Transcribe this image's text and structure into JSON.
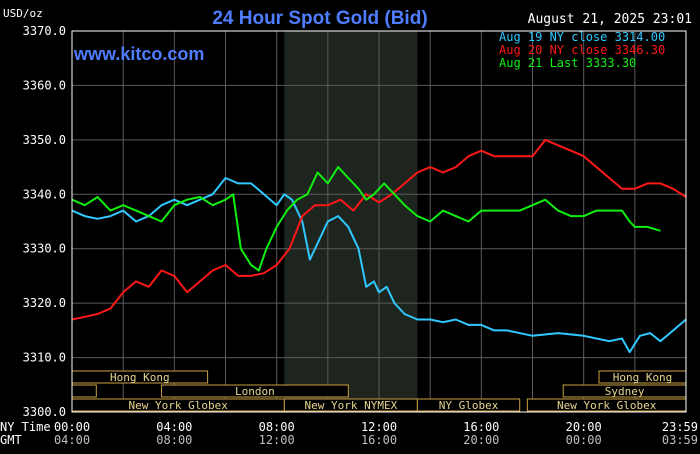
{
  "chart_data": {
    "type": "line",
    "title": "24 Hour Spot Gold (Bid)",
    "watermark": "www.kitco.com",
    "timestamp": "August 21, 2025 23:01",
    "yunit": "USD/oz",
    "ylim": [
      3300,
      3370
    ],
    "yticks": [
      "3370.0",
      "3360.0",
      "3350.0",
      "3340.0",
      "3330.0",
      "3320.0",
      "3310.0",
      "3300.0"
    ],
    "xlim": [
      0,
      24
    ],
    "grid": true,
    "legend_position": "top-right",
    "xaxis": {
      "row1_label": "NY Time",
      "row2_label": "GMT",
      "ny_ticks": [
        "00:00",
        "04:00",
        "08:00",
        "12:00",
        "16:00",
        "20:00",
        "23:59"
      ],
      "gmt_ticks": [
        "04:00",
        "08:00",
        "12:00",
        "16:00",
        "20:00",
        "00:00",
        "03:59"
      ],
      "tick_hours": [
        0,
        4,
        8,
        12,
        16,
        20,
        23.98
      ]
    },
    "shaded_hours": [
      8.3,
      13.5
    ],
    "sessions": [
      {
        "label": "Hong Kong",
        "row": 0,
        "start": 0,
        "end": 5.3
      },
      {
        "label": "Hong Kong",
        "row": 0,
        "start": 20.6,
        "end": 24
      },
      {
        "label": "London",
        "row": 1,
        "start": 0,
        "end": 0.95
      },
      {
        "label": "London",
        "row": 1,
        "start": 3.5,
        "end": 10.8
      },
      {
        "label": "Sydney",
        "row": 1,
        "start": 19.2,
        "end": 24
      },
      {
        "label": "New York Globex",
        "row": 2,
        "start": 0,
        "end": 8.3
      },
      {
        "label": "New York NYMEX",
        "row": 2,
        "start": 8.3,
        "end": 13.5
      },
      {
        "label": "NY Globex",
        "row": 2,
        "start": 13.5,
        "end": 17.5
      },
      {
        "label": "New York Globex",
        "row": 2,
        "start": 17.8,
        "end": 24
      }
    ],
    "series": [
      {
        "name": "Aug 19 NY close 3314.00",
        "color": "#30c8ff",
        "x": [
          0,
          0.5,
          1.0,
          1.5,
          2.0,
          2.5,
          3.0,
          3.5,
          4.0,
          4.5,
          5.0,
          5.5,
          6.0,
          6.5,
          7.0,
          7.5,
          8.0,
          8.3,
          8.6,
          9.0,
          9.3,
          9.6,
          10.0,
          10.4,
          10.8,
          11.2,
          11.5,
          11.8,
          12.0,
          12.3,
          12.6,
          13.0,
          13.5,
          14.0,
          14.5,
          15.0,
          15.5,
          16.0,
          16.5,
          17.0,
          18.0,
          19.0,
          20.0,
          20.5,
          21.0,
          21.5,
          21.8,
          22.2,
          22.6,
          23.0,
          23.5,
          24.0
        ],
        "values": [
          3337,
          3336,
          3335.5,
          3336,
          3337,
          3335,
          3336,
          3338,
          3339,
          3338,
          3339,
          3340,
          3343,
          3342,
          3342,
          3340,
          3338,
          3340,
          3339,
          3335,
          3328,
          3331,
          3335,
          3336,
          3334,
          3330,
          3323,
          3324,
          3322,
          3323,
          3320,
          3318,
          3317,
          3317,
          3316.5,
          3317,
          3316,
          3316,
          3315,
          3315,
          3314,
          3314.5,
          3314,
          3313.5,
          3313,
          3313.5,
          3311,
          3314,
          3314.5,
          3313,
          3315,
          3317
        ]
      },
      {
        "name": "Aug 20 NY close 3346.30",
        "color": "#ff1818",
        "x": [
          0,
          0.5,
          1.0,
          1.5,
          2.0,
          2.5,
          3.0,
          3.5,
          4.0,
          4.5,
          5.0,
          5.5,
          6.0,
          6.5,
          7.0,
          7.5,
          8.0,
          8.5,
          9.0,
          9.5,
          10.0,
          10.5,
          11.0,
          11.5,
          12.0,
          12.5,
          13.0,
          13.5,
          14.0,
          14.5,
          15.0,
          15.5,
          16.0,
          16.5,
          17.0,
          17.5,
          18.0,
          18.5,
          19.0,
          19.5,
          20.0,
          20.5,
          21.0,
          21.5,
          22.0,
          22.5,
          23.0,
          23.5,
          24.0
        ],
        "values": [
          3317,
          3317.5,
          3318,
          3319,
          3322,
          3324,
          3323,
          3326,
          3325,
          3322,
          3324,
          3326,
          3327,
          3325,
          3325,
          3325.5,
          3327,
          3330,
          3336,
          3338,
          3338,
          3339,
          3337,
          3340,
          3338.5,
          3340,
          3342,
          3344,
          3345,
          3344,
          3345,
          3347,
          3348,
          3347,
          3347,
          3347,
          3347,
          3350,
          3349,
          3348,
          3347,
          3345,
          3343,
          3341,
          3341,
          3342,
          3342,
          3341,
          3339.5
        ]
      },
      {
        "name": "Aug 21 Last 3333.30",
        "color": "#10f010",
        "x": [
          0,
          0.5,
          1.0,
          1.5,
          2.0,
          2.5,
          3.0,
          3.5,
          4.0,
          4.5,
          5.0,
          5.5,
          6.0,
          6.3,
          6.6,
          7.0,
          7.3,
          7.6,
          8.0,
          8.4,
          8.8,
          9.2,
          9.6,
          10.0,
          10.4,
          10.8,
          11.2,
          11.5,
          11.8,
          12.2,
          12.6,
          13.0,
          13.5,
          14.0,
          14.5,
          15.0,
          15.5,
          16.0,
          16.5,
          17.0,
          17.5,
          18.0,
          18.5,
          19.0,
          19.5,
          20.0,
          20.5,
          21.0,
          21.5,
          21.8,
          22.0,
          22.5,
          23.0
        ],
        "values": [
          3339,
          3338,
          3339.5,
          3337,
          3338,
          3337,
          3336,
          3335,
          3338,
          3339,
          3339.5,
          3338,
          3339,
          3340,
          3330,
          3327,
          3326,
          3330,
          3334,
          3337,
          3339,
          3340,
          3344,
          3342,
          3345,
          3343,
          3341,
          3339,
          3340,
          3342,
          3340,
          3338,
          3336,
          3335,
          3337,
          3336,
          3335,
          3337,
          3337,
          3337,
          3337,
          3338,
          3339,
          3337,
          3336,
          3336,
          3337,
          3337,
          3337,
          3335,
          3334,
          3334,
          3333.3
        ]
      }
    ]
  }
}
